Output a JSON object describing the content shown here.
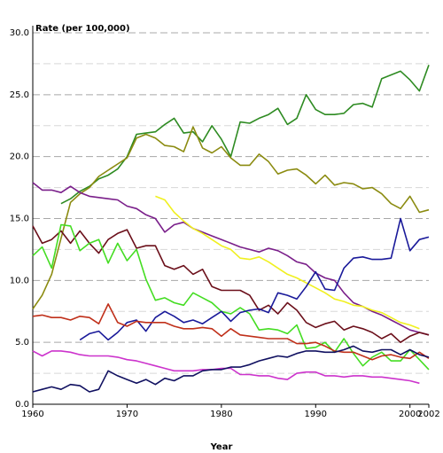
{
  "chart_data": {
    "type": "line",
    "y_label": "Rate (per 100,000)",
    "x_label": "Year",
    "x": [
      1960,
      1961,
      1962,
      1963,
      1964,
      1965,
      1966,
      1967,
      1968,
      1969,
      1970,
      1971,
      1972,
      1973,
      1974,
      1975,
      1976,
      1977,
      1978,
      1979,
      1980,
      1981,
      1982,
      1983,
      1984,
      1985,
      1986,
      1987,
      1988,
      1989,
      1990,
      1991,
      1992,
      1993,
      1994,
      1995,
      1996,
      1997,
      1998,
      1999,
      2000,
      2001,
      2002
    ],
    "xlim": [
      1960,
      2002
    ],
    "xticks": [
      1960,
      1970,
      1980,
      1990,
      2000,
      2002
    ],
    "ylim": [
      0,
      30
    ],
    "yticks": [
      {
        "value": 0,
        "label": "0.0"
      },
      {
        "value": 5,
        "label": "5.0"
      },
      {
        "value": 10,
        "label": "10.0"
      },
      {
        "value": 15,
        "label": "15.0"
      },
      {
        "value": 20,
        "label": "20.0"
      },
      {
        "value": 25,
        "label": "25.0"
      },
      {
        "value": 30,
        "label": "30.0"
      }
    ],
    "minor_yticks": [
      2.5,
      7.5,
      12.5,
      17.5,
      22.5,
      27.5
    ],
    "grid": true,
    "series": [
      {
        "color": "#2e8b22",
        "values": [
          null,
          null,
          null,
          16.2,
          16.6,
          17.2,
          17.6,
          18.2,
          18.5,
          19.0,
          20.0,
          21.8,
          21.9,
          22.0,
          22.6,
          23.1,
          21.9,
          22.0,
          21.2,
          22.5,
          21.4,
          20.0,
          22.8,
          22.7,
          23.1,
          23.4,
          23.9,
          22.6,
          23.1,
          25.0,
          23.8,
          23.4,
          23.4,
          23.5,
          24.2,
          24.3,
          24.0,
          26.3,
          26.6,
          26.9,
          26.2,
          25.3,
          27.4
        ]
      },
      {
        "color": "#8b8b10",
        "values": [
          7.7,
          8.8,
          10.5,
          13.4,
          16.3,
          17.0,
          17.5,
          18.4,
          18.9,
          19.4,
          19.9,
          21.5,
          21.8,
          21.5,
          20.9,
          20.8,
          20.4,
          22.4,
          20.7,
          20.3,
          20.8,
          19.9,
          19.3,
          19.3,
          20.2,
          19.6,
          18.6,
          18.9,
          19.0,
          18.5,
          17.8,
          18.5,
          17.7,
          17.9,
          17.8,
          17.4,
          17.5,
          17.0,
          16.2,
          15.8,
          16.8,
          15.5,
          15.7
        ]
      },
      {
        "color": "#7a1f8a",
        "values": [
          17.9,
          17.3,
          17.3,
          17.1,
          17.6,
          17.1,
          16.8,
          16.7,
          16.6,
          16.5,
          16.0,
          15.8,
          15.3,
          15.0,
          13.9,
          14.5,
          14.7,
          14.2,
          13.9,
          13.6,
          13.3,
          13.0,
          12.7,
          12.5,
          12.3,
          12.6,
          12.4,
          12.0,
          11.5,
          11.3,
          10.6,
          10.2,
          10.0,
          9.0,
          8.2,
          7.9,
          7.5,
          7.2,
          6.8,
          6.4,
          6.0,
          5.8,
          5.6
        ]
      },
      {
        "color": "#f0f020",
        "values": [
          null,
          null,
          null,
          null,
          null,
          null,
          null,
          null,
          null,
          null,
          null,
          null,
          null,
          16.8,
          16.5,
          15.5,
          14.8,
          14.2,
          13.8,
          13.3,
          12.8,
          12.5,
          11.8,
          11.7,
          11.9,
          11.5,
          11.0,
          10.5,
          10.2,
          9.8,
          9.4,
          9.0,
          8.5,
          8.3,
          8.0,
          7.9,
          7.6,
          7.4,
          7.0,
          6.6,
          6.4,
          6.1,
          null
        ]
      },
      {
        "color": "#6b0f1a",
        "values": [
          14.4,
          13.0,
          13.3,
          14.0,
          13.0,
          14.0,
          13.0,
          12.2,
          13.3,
          13.8,
          14.1,
          12.6,
          12.8,
          12.8,
          11.2,
          10.9,
          11.2,
          10.5,
          10.9,
          9.5,
          9.2,
          9.2,
          9.2,
          8.8,
          7.6,
          8.0,
          7.3,
          8.2,
          7.6,
          6.6,
          6.2,
          6.5,
          6.7,
          6.0,
          6.3,
          6.1,
          5.8,
          5.3,
          5.7,
          5.0,
          5.5,
          5.8,
          5.6
        ]
      },
      {
        "color": "#44dd22",
        "values": [
          12.0,
          12.7,
          11.0,
          14.5,
          14.4,
          12.4,
          13.0,
          13.3,
          11.4,
          13.0,
          11.6,
          12.5,
          10.1,
          8.4,
          8.6,
          8.2,
          8.0,
          9.0,
          8.6,
          8.2,
          7.5,
          7.3,
          7.8,
          7.3,
          6.0,
          6.1,
          6.0,
          5.7,
          6.4,
          4.5,
          4.6,
          5.0,
          4.2,
          5.3,
          4.1,
          3.1,
          3.8,
          4.2,
          3.5,
          3.5,
          4.4,
          3.6,
          2.8
        ]
      },
      {
        "color": "#1a1a9a",
        "values": [
          null,
          null,
          null,
          null,
          null,
          5.2,
          5.7,
          5.9,
          5.2,
          5.8,
          6.6,
          6.8,
          5.9,
          7.0,
          7.5,
          7.1,
          6.6,
          6.8,
          6.5,
          7.0,
          7.5,
          6.7,
          7.4,
          7.6,
          7.7,
          7.4,
          9.0,
          8.8,
          8.5,
          9.5,
          10.7,
          9.3,
          9.2,
          11.0,
          11.8,
          11.9,
          11.7,
          11.7,
          11.8,
          15.0,
          12.4,
          13.3,
          13.5
        ]
      },
      {
        "color": "#c0301a",
        "values": [
          7.1,
          7.2,
          7.0,
          7.0,
          6.8,
          7.1,
          7.0,
          6.5,
          8.1,
          6.6,
          6.3,
          6.7,
          6.6,
          6.6,
          6.6,
          6.3,
          6.1,
          6.1,
          6.2,
          6.1,
          5.5,
          6.1,
          5.6,
          5.5,
          5.4,
          5.3,
          5.3,
          5.3,
          4.9,
          4.9,
          5.0,
          4.7,
          4.3,
          4.2,
          4.2,
          3.9,
          3.6,
          3.9,
          4.0,
          3.8,
          3.7,
          4.2,
          3.7
        ]
      },
      {
        "color": "#cc33cc",
        "values": [
          4.3,
          3.9,
          4.3,
          4.3,
          4.2,
          4.0,
          3.9,
          3.9,
          3.9,
          3.8,
          3.6,
          3.5,
          3.3,
          3.1,
          2.9,
          2.7,
          2.7,
          2.7,
          2.8,
          2.8,
          2.9,
          2.9,
          2.4,
          2.4,
          2.3,
          2.3,
          2.1,
          2.0,
          2.5,
          2.6,
          2.6,
          2.3,
          2.3,
          2.2,
          2.3,
          2.3,
          2.2,
          2.2,
          2.1,
          2.0,
          1.9,
          1.7,
          null
        ]
      },
      {
        "color": "#101060",
        "values": [
          1.0,
          1.2,
          1.4,
          1.2,
          1.6,
          1.5,
          1.0,
          1.2,
          2.7,
          2.3,
          2.0,
          1.7,
          2.0,
          1.6,
          2.1,
          1.9,
          2.3,
          2.3,
          2.7,
          2.8,
          2.8,
          3.0,
          3.0,
          3.2,
          3.5,
          3.7,
          3.9,
          3.8,
          4.1,
          4.3,
          4.3,
          4.2,
          4.2,
          4.4,
          4.7,
          4.3,
          4.2,
          4.4,
          4.4,
          4.0,
          4.4,
          4.0,
          3.8
        ]
      }
    ]
  }
}
